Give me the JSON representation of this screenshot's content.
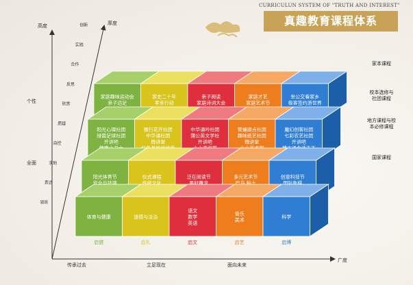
{
  "title_en": "CURRICULUN SYSTEM OF \"TRUTH AND INTEREST\"",
  "title_cn": "真趣教育课程体系",
  "axes": {
    "height_label": "高度",
    "depth_label": "厚度",
    "breadth_label": "广度",
    "height_levels": [
      "全面",
      "个性"
    ],
    "depth_levels": [
      "领听",
      "表达",
      "求助",
      "自控",
      "质疑",
      "欣赏",
      "反思",
      "合作",
      "实践",
      "创新"
    ],
    "breadth_levels": [
      "传承过去",
      "立足现在",
      "面向未来"
    ]
  },
  "right_labels": [
    "家本课程",
    "校本选修与社团课程",
    "地方课程与校本必修课程",
    "国家课程"
  ],
  "columns": [
    {
      "name": "启健",
      "color": "#7fb341",
      "top": "#a6d06a",
      "side": "#5e8f2a",
      "tiers": [
        [
          "体育与健康"
        ],
        [
          "阳光体育节",
          "安全与环境"
        ],
        [
          "阳光心理社团",
          "绿茵足球社团",
          "开讲吧",
          "健康小卫士"
        ],
        [
          "家庭趣味运动会",
          "亲子远足"
        ]
      ]
    },
    {
      "name": "启礼",
      "color": "#d8c41c",
      "top": "#ece060",
      "side": "#b09c10",
      "tiers": [
        [
          "道德与法治"
        ],
        [
          "仪式课程",
          "传统文化"
        ],
        [
          "雅行花开社团",
          "中华诵社团",
          "微讲堂",
          "红色基因代代传"
        ],
        [
          "家史二十年",
          "孝亲行动"
        ]
      ]
    },
    {
      "name": "启文",
      "color": "#df2f3c",
      "top": "#ef7a80",
      "side": "#b0202a",
      "tiers": [
        [
          "语文",
          "数学",
          "英语"
        ],
        [
          "泛在阅读节",
          "墨轩雕龙"
        ],
        [
          "中华诵吟社团",
          "蒲公英文学社",
          "开讲吧",
          "小小演说家"
        ],
        [
          "亲子阅读",
          "家庭诗词大会"
        ]
      ]
    },
    {
      "name": "启艺",
      "color": "#ee7d1e",
      "top": "#f5a964",
      "side": "#c0610e",
      "tiers": [
        [
          "音乐",
          "美术"
        ],
        [
          "多元艺术节",
          "巴乌 粘土"
        ],
        [
          "管蛹颂点社团",
          "趣味纸艺社团",
          "微讲堂",
          "小小艺术家"
        ],
        [
          "家庭才艺",
          "家庭艺术节"
        ]
      ]
    },
    {
      "name": "启博",
      "color": "#2f7ed4",
      "top": "#7fb0ea",
      "side": "#1c5ea8",
      "tiers": [
        [
          "科学"
        ],
        [
          "创意科技节",
          "国际象棋"
        ],
        [
          "魔幻创客社团",
          "七彩农艺社团",
          "开讲吧",
          "博古通今话天下"
        ],
        [
          "坐公交看家乡",
          "极客签约游世界"
        ]
      ]
    }
  ],
  "dots": "……"
}
